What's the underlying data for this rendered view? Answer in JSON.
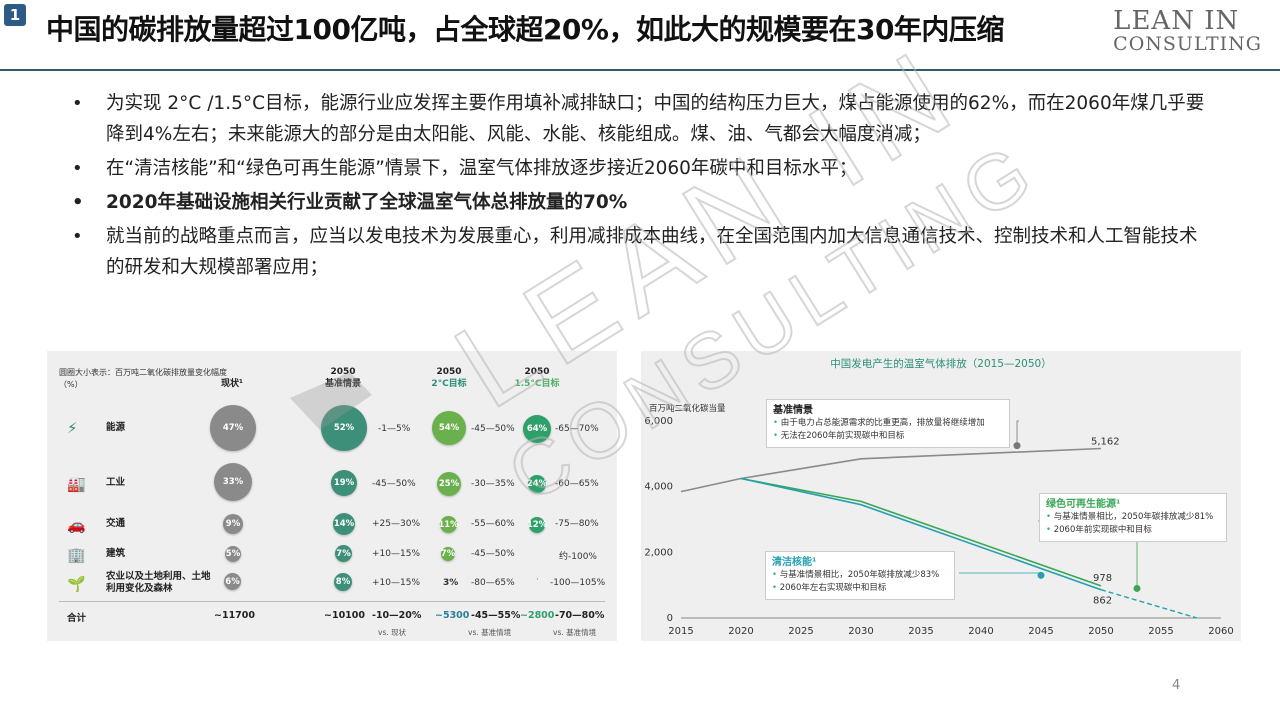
{
  "slide": {
    "badge": "1",
    "title": "中国的碳排放量超过100亿吨，占全球超20%，如此大的规模要在30年内压缩",
    "brand_line1": "LEAN IN",
    "brand_line2": "CONSULTING",
    "page_number": "4",
    "accent": "#2f5d6a"
  },
  "bullets": [
    {
      "text": "为实现 2°C /1.5°C目标，能源行业应发挥主要作用填补减排缺口；中国的结构压力巨大，煤占能源使用的62%，而在2060年煤几乎要降到4%左右；未来能源大的部分是由太阳能、风能、水能、核能组成。煤、油、气都会大幅度消减；",
      "bold": false
    },
    {
      "text": "在“清洁核能”和“绿色可再生能源”情景下，温室气体排放逐步接近2060年碳中和目标水平；",
      "bold": false
    },
    {
      "text": "2020年基础设施相关行业贡献了全球温室气体总排放量的70%",
      "bold": true
    },
    {
      "text": "就当前的战略重点而言，应当以发电技术为发展重心，利用减排成本曲线，在全国范围内加大信息通信技术、控制技术和人工智能技术的研发和大规模部署应用；",
      "bold": false
    }
  ],
  "watermark": {
    "line1": "LEAN IN",
    "line2": "CONSULTING"
  },
  "chart_data": [
    {
      "type": "table",
      "header_note": "圆圈大小表示：百万吨二氧化碳排放量变化幅度（%）",
      "columns": [
        {
          "year": "",
          "name": "现状¹"
        },
        {
          "year": "2050",
          "name": "基准情景"
        },
        {
          "year": "2050",
          "name": "2°C目标"
        },
        {
          "year": "2050",
          "name": "1.5°C目标"
        }
      ],
      "rows": [
        {
          "icon": "lightning-icon",
          "label": "能源",
          "current": "47%",
          "baseline": "52%",
          "baseline_range": "-1—5%",
          "c2": "54%",
          "c2_range": "-45—50%",
          "c15": "64%",
          "c15_range": "-65—70%"
        },
        {
          "icon": "factory-icon",
          "label": "工业",
          "current": "33%",
          "baseline": "19%",
          "baseline_range": "-45—50%",
          "c2": "25%",
          "c2_range": "-30—35%",
          "c15": "24%",
          "c15_range": "-60—65%"
        },
        {
          "icon": "car-icon",
          "label": "交通",
          "current": "9%",
          "baseline": "14%",
          "baseline_range": "+25—30%",
          "c2": "11%",
          "c2_range": "-55—60%",
          "c15": "12%",
          "c15_range": "-75—80%"
        },
        {
          "icon": "building-icon",
          "label": "建筑",
          "current": "5%",
          "baseline": "7%",
          "baseline_range": "+10—15%",
          "c2": "7%",
          "c2_range": "-45—50%",
          "c15": "",
          "c15_range": "约-100%"
        },
        {
          "icon": "plant-icon",
          "label": "农业以及土地利用、土地利用变化及森林",
          "current": "6%",
          "baseline": "8%",
          "baseline_range": "+10—15%",
          "c2": "3%",
          "c2_range": "-80—65%",
          "c15": "",
          "c15_range": "-100—105%"
        }
      ],
      "totals": {
        "label": "合计",
        "current": "~11700",
        "baseline": "~10100",
        "baseline_change": "-10—20%",
        "baseline_vs": "vs. 现状",
        "c2": "~5300",
        "c2_change": "-45—55%",
        "c2_vs": "vs. 基准情境",
        "c15": "~2800",
        "c15_change": "-70—80%",
        "c15_vs": "vs. 基准情境"
      },
      "colors": {
        "current": "#8a8a8a",
        "baseline": "#3d8f7a",
        "c2": "#6ab04c",
        "c15": "#2fa06a"
      }
    },
    {
      "type": "line",
      "title": "中国发电产生的温室气体排放（2015—2050）",
      "ylabel": "百万吨二氧化碳当量",
      "ylim": [
        0,
        6000
      ],
      "xlim": [
        2015,
        2060
      ],
      "yticks": [
        0,
        2000,
        4000,
        6000
      ],
      "ytick_labels": [
        "0",
        "2,000",
        "4,000",
        "6,000"
      ],
      "xticks": [
        2015,
        2020,
        2025,
        2030,
        2035,
        2040,
        2045,
        2050,
        2055,
        2060
      ],
      "series": [
        {
          "name": "基准情景",
          "color": "#8a8a8a",
          "x": [
            2015,
            2020,
            2030,
            2050
          ],
          "y": [
            3850,
            4250,
            4850,
            5162
          ],
          "end_label": "5,162"
        },
        {
          "name": "绿色可再生能源¹",
          "color": "#3aa655",
          "x": [
            2020,
            2030,
            2050
          ],
          "y": [
            4250,
            3550,
            978
          ],
          "end_label": "978"
        },
        {
          "name": "清洁核能¹",
          "color": "#24a0b0",
          "x": [
            2020,
            2030,
            2050
          ],
          "y": [
            4250,
            3450,
            862
          ],
          "end_label": "862"
        }
      ],
      "projection": {
        "color": "#24a0b0",
        "x": [
          2050,
          2058
        ],
        "y": [
          862,
          0
        ]
      },
      "annotations": [
        {
          "title": "基准情景",
          "items": [
            "由于电力占总能源需求的比重更高，排放量将继续增加",
            "无法在2060年前实现碳中和目标"
          ],
          "marker_x": 2043,
          "marker_y": 5250
        },
        {
          "title": "绿色可再生能源¹",
          "items": [
            "与基准情景相比，2050年碳排放减少81%",
            "2060年前实现碳中和目标"
          ],
          "marker_x": 2053,
          "marker_y": 900
        },
        {
          "title": "清洁核能¹",
          "items": [
            "与基准情景相比，2050年碳排放减少83%",
            "2060年左右实现碳中和目标"
          ],
          "marker_x": 2045,
          "marker_y": 1300
        }
      ]
    }
  ]
}
